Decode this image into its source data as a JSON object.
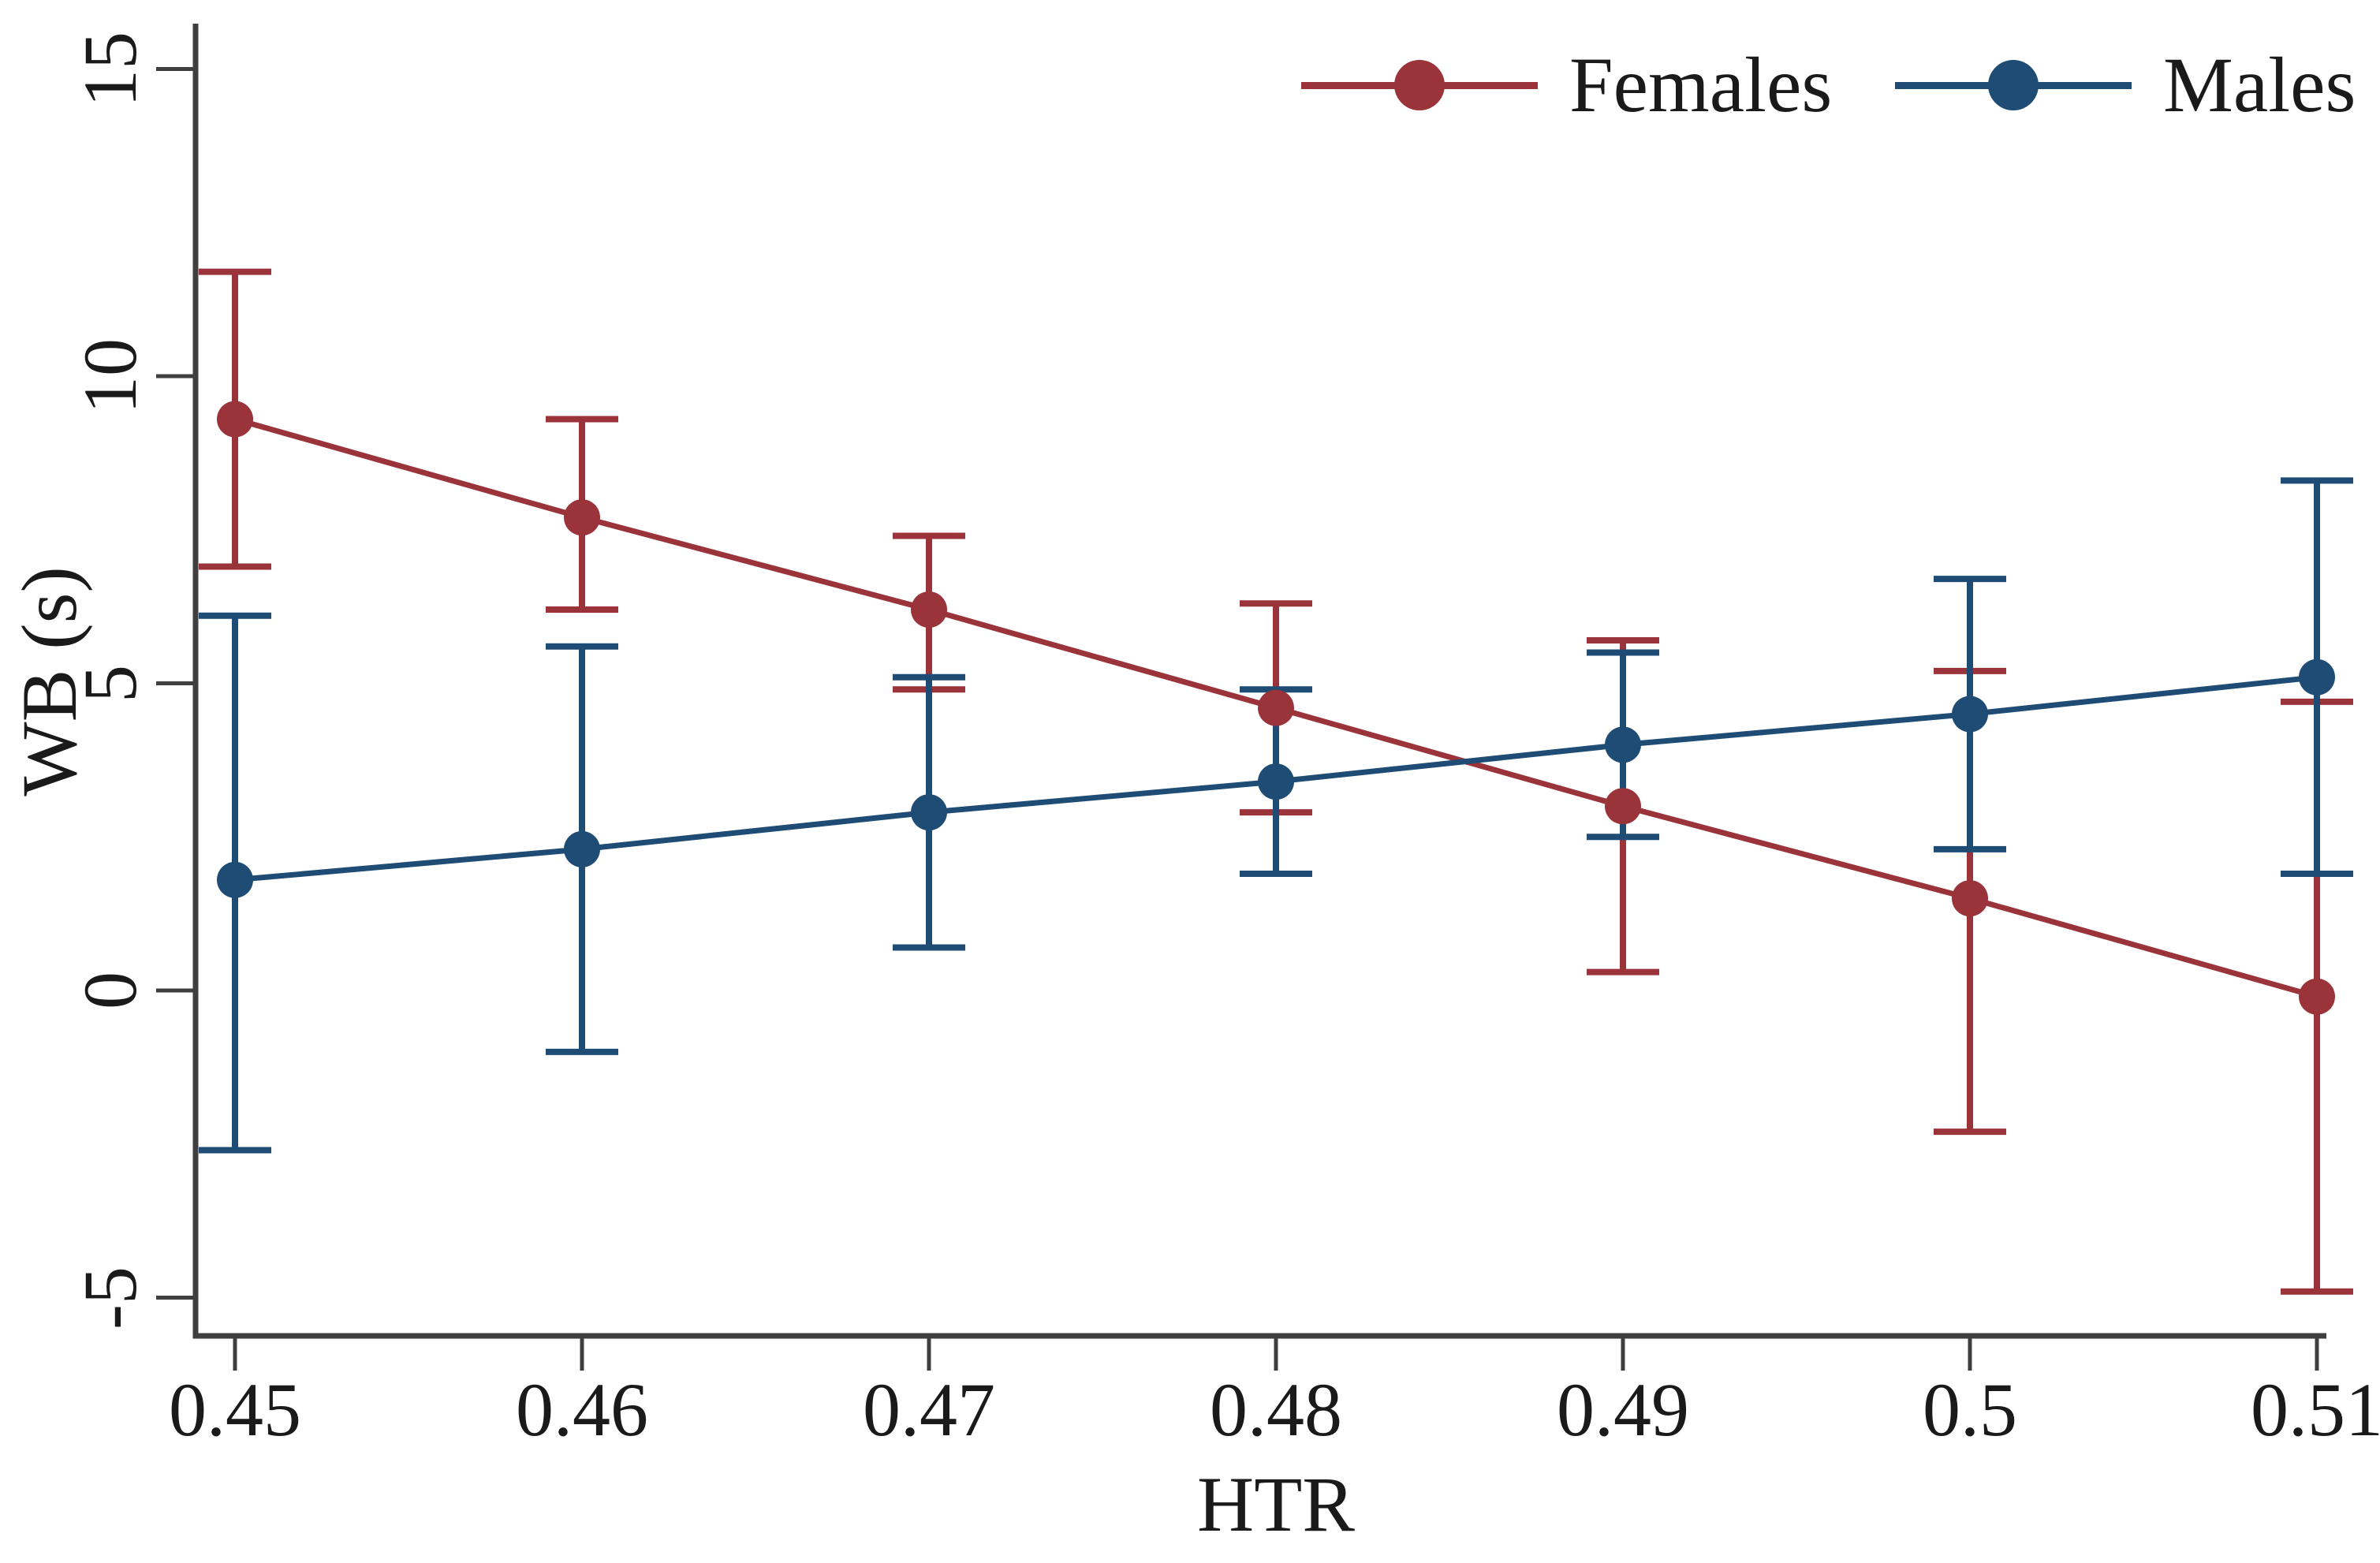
{
  "chart_data": {
    "type": "line",
    "title": "",
    "xlabel": "HTR",
    "ylabel": "WB (s)",
    "x": [
      0.45,
      0.46,
      0.47,
      0.48,
      0.49,
      0.5,
      0.51
    ],
    "x_tick_labels": [
      "0.45",
      "0.46",
      "0.47",
      "0.48",
      "0.49",
      "0.5",
      "0.51"
    ],
    "y_ticks": [
      -5,
      0,
      5,
      10,
      15
    ],
    "y_tick_labels": [
      "-5",
      "0",
      "5",
      "10",
      "15"
    ],
    "xlim": [
      0.4488,
      0.5115
    ],
    "ylim": [
      -5.6,
      15.7
    ],
    "grid": false,
    "legend_position": "top-right-inside",
    "marker": "circle",
    "axis_color": "#3f3f3f",
    "series": [
      {
        "name": "Females",
        "color": "#9b333a",
        "values": [
          9.3,
          7.7,
          6.2,
          4.6,
          3.0,
          1.5,
          -0.1
        ],
        "ci_low": [
          6.9,
          6.2,
          4.9,
          2.9,
          0.3,
          -2.3,
          -4.9
        ],
        "ci_high": [
          11.7,
          9.3,
          7.4,
          6.3,
          5.7,
          5.2,
          4.7
        ]
      },
      {
        "name": "Males",
        "color": "#1f4c74",
        "values": [
          1.8,
          2.3,
          2.9,
          3.4,
          4.0,
          4.5,
          5.1
        ],
        "ci_low": [
          -2.6,
          -1.0,
          0.7,
          1.9,
          2.5,
          2.3,
          1.9
        ],
        "ci_high": [
          6.1,
          5.6,
          5.1,
          4.9,
          5.5,
          6.7,
          8.3
        ]
      }
    ]
  }
}
